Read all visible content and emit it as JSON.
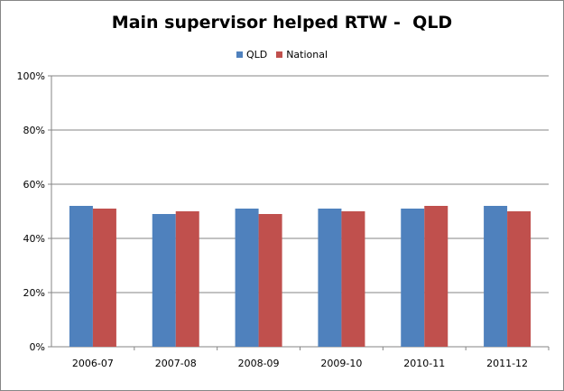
{
  "chart_data": {
    "type": "bar",
    "title": "Main supervisor helped RTW -  QLD",
    "categories": [
      "2006-07",
      "2007-08",
      "2008-09",
      "2009-10",
      "2010-11",
      "2011-12"
    ],
    "series": [
      {
        "name": "QLD",
        "color": "#4F81BD",
        "values": [
          52,
          49,
          51,
          51,
          51,
          52
        ]
      },
      {
        "name": "National",
        "color": "#C0504D",
        "values": [
          51,
          50,
          49,
          50,
          52,
          50
        ]
      }
    ],
    "yticks": [
      "0%",
      "20%",
      "40%",
      "60%",
      "80%",
      "100%"
    ],
    "ylim": [
      0,
      100
    ],
    "grid": true,
    "legend_position": "top"
  }
}
